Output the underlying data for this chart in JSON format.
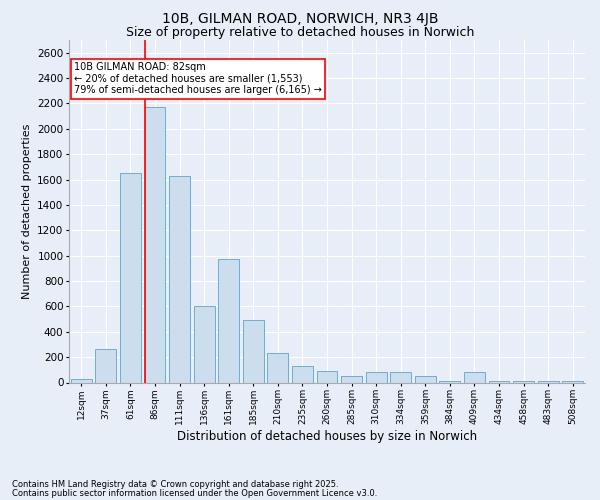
{
  "title1": "10B, GILMAN ROAD, NORWICH, NR3 4JB",
  "title2": "Size of property relative to detached houses in Norwich",
  "xlabel": "Distribution of detached houses by size in Norwich",
  "ylabel": "Number of detached properties",
  "categories": [
    "12sqm",
    "37sqm",
    "61sqm",
    "86sqm",
    "111sqm",
    "136sqm",
    "161sqm",
    "185sqm",
    "210sqm",
    "235sqm",
    "260sqm",
    "285sqm",
    "310sqm",
    "334sqm",
    "359sqm",
    "384sqm",
    "409sqm",
    "434sqm",
    "458sqm",
    "483sqm",
    "508sqm"
  ],
  "values": [
    25,
    265,
    1650,
    2175,
    1625,
    600,
    975,
    490,
    230,
    130,
    90,
    50,
    80,
    80,
    50,
    10,
    80,
    10,
    10,
    10,
    10
  ],
  "bar_color": "#ccdded",
  "bar_edge_color": "#6aafd6",
  "vline_x_index": 3,
  "vline_color": "red",
  "annotation_text": "10B GILMAN ROAD: 82sqm\n← 20% of detached houses are smaller (1,553)\n79% of semi-detached houses are larger (6,165) →",
  "annotation_box_color": "white",
  "annotation_box_edge": "red",
  "ylim": [
    0,
    2700
  ],
  "yticks": [
    0,
    200,
    400,
    600,
    800,
    1000,
    1200,
    1400,
    1600,
    1800,
    2000,
    2200,
    2400,
    2600
  ],
  "footer1": "Contains HM Land Registry data © Crown copyright and database right 2025.",
  "footer2": "Contains public sector information licensed under the Open Government Licence v3.0.",
  "bg_color": "#e8eef8",
  "grid_color": "#ffffff",
  "title1_fontsize": 10,
  "title2_fontsize": 9
}
